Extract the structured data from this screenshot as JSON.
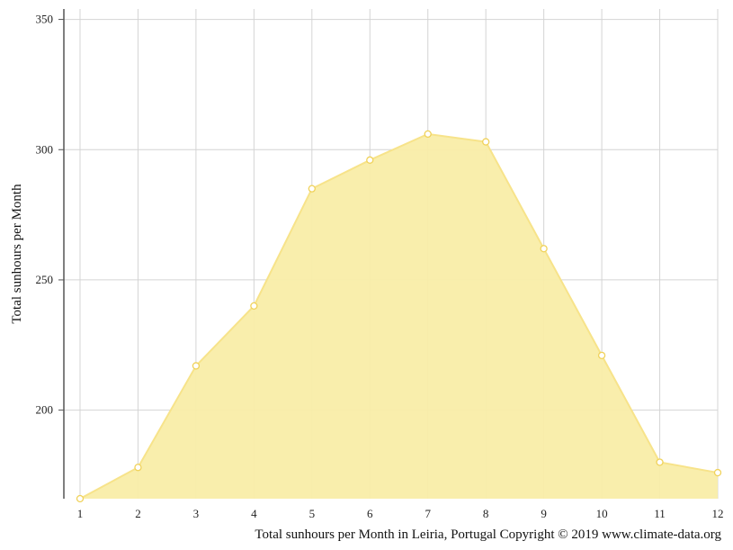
{
  "chart_data": {
    "type": "area",
    "title": "",
    "xlabel": "",
    "ylabel": "Total sunhours per Month",
    "caption": "Total sunhours per Month in Leiria, Portugal Copyright © 2019 www.climate-data.org",
    "x": [
      "1",
      "2",
      "3",
      "4",
      "5",
      "6",
      "7",
      "8",
      "9",
      "10",
      "11",
      "12"
    ],
    "series": [
      {
        "name": "",
        "values": [
          166,
          178,
          217,
          240,
          285,
          296,
          306,
          303,
          262,
          221,
          180,
          176
        ]
      }
    ],
    "yticks": [
      200,
      250,
      300,
      350
    ],
    "ylim": [
      166,
      354
    ],
    "grid": true,
    "colors": {
      "fill": "#f9eda8",
      "line": "#f7e38a",
      "marker_stroke": "#f0d25a",
      "marker_fill": "#ffffff",
      "grid": "#d4d4d4",
      "axis": "#555555"
    }
  }
}
